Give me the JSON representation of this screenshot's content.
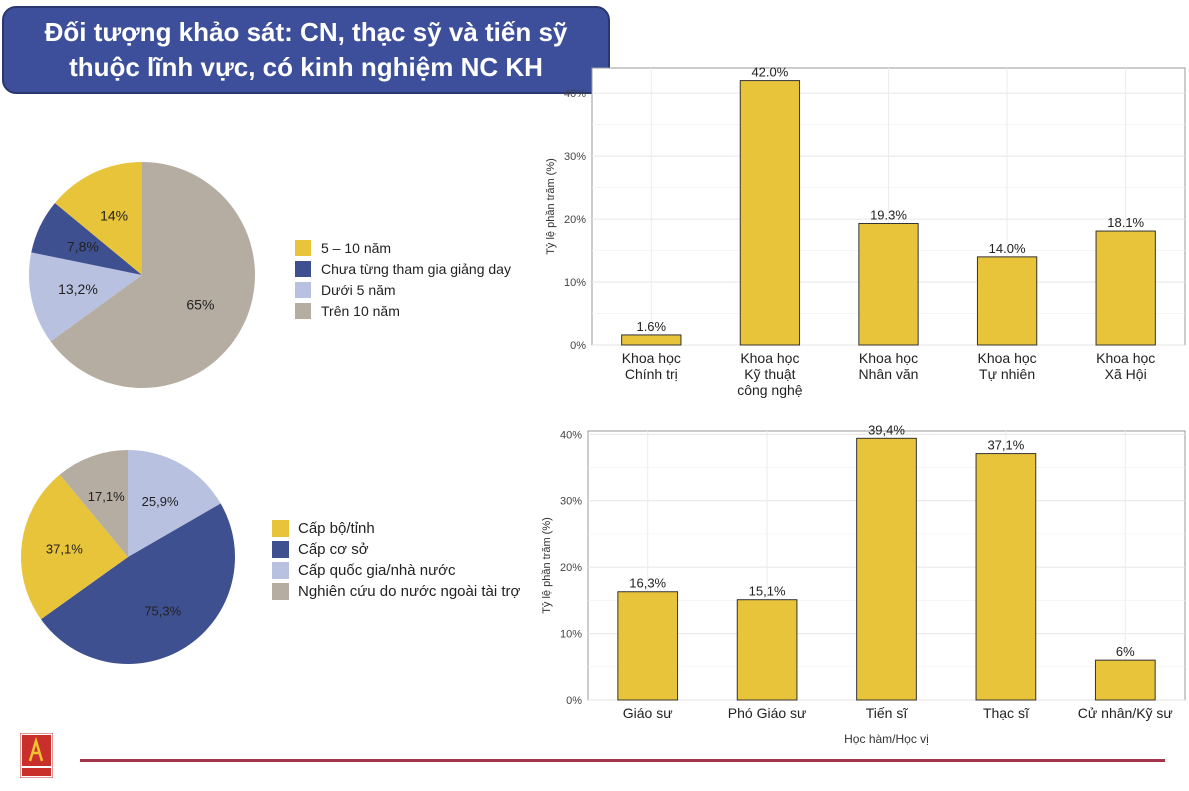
{
  "header": {
    "title_line1": "Đối tượng khảo sát: CN, thạc sỹ và tiến sỹ",
    "title_line2": "thuộc lĩnh vực, có kinh nghiệm NC KH"
  },
  "chart_data": [
    {
      "id": "pie-experience",
      "type": "pie",
      "title": "",
      "categories": [
        "5 – 10 năm",
        "Chưa từng tham gia giảng day",
        "Dưới 5 năm",
        "Trên 10 năm"
      ],
      "values": [
        14,
        7.8,
        13.2,
        65
      ],
      "labels": [
        "14%",
        "7,8%",
        "13,2%",
        "65%"
      ],
      "colors": [
        "#e8c43b",
        "#3f5090",
        "#b8c2e0",
        "#b5ada2"
      ],
      "legend": "right"
    },
    {
      "id": "bar-field",
      "type": "bar",
      "title": "",
      "categories": [
        [
          "Khoa học",
          "Chính trị"
        ],
        [
          "Khoa học",
          "Kỹ thuật",
          "công nghệ"
        ],
        [
          "Khoa học",
          "Nhân văn"
        ],
        [
          "Khoa học",
          "Tự nhiên"
        ],
        [
          "Khoa học",
          "Xã Hội"
        ]
      ],
      "values": [
        1.6,
        42.0,
        19.3,
        14.0,
        18.1
      ],
      "labels": [
        "1.6%",
        "42.0%",
        "19.3%",
        "14.0%",
        "18.1%"
      ],
      "xlabel": "",
      "ylabel": "Tỷ lệ phần trăm (%)",
      "ylim": [
        0,
        44
      ],
      "yticks": [
        0,
        10,
        20,
        30,
        40
      ],
      "ytick_labels": [
        "0%",
        "10%",
        "20%",
        "30%",
        "40%"
      ],
      "bar_color": "#e8c43b",
      "grid": true
    },
    {
      "id": "pie-project-level",
      "type": "pie",
      "title": "",
      "categories": [
        "Cấp bộ/tỉnh",
        "Cấp cơ sở",
        "Cấp quốc gia/nhà nước",
        "Nghiên cứu do nước ngoài tài trợ"
      ],
      "values": [
        37.1,
        75.3,
        25.9,
        17.1
      ],
      "labels": [
        "37,1%",
        "75,3%",
        "25,9%",
        "17,1%"
      ],
      "colors": [
        "#e8c43b",
        "#3f5090",
        "#b8c2e0",
        "#b5ada2"
      ],
      "legend": "right"
    },
    {
      "id": "bar-degree",
      "type": "bar",
      "title": "",
      "categories": [
        [
          "Giáo sư"
        ],
        [
          "Phó Giáo sư"
        ],
        [
          "Tiến sĩ"
        ],
        [
          "Thạc sĩ"
        ],
        [
          "Cử nhân/Kỹ sư"
        ]
      ],
      "values": [
        16.3,
        15.1,
        39.4,
        37.1,
        6
      ],
      "labels": [
        "16,3%",
        "15,1%",
        "39,4%",
        "37,1%",
        "6%"
      ],
      "xlabel": "Học hàm/Học vị",
      "ylabel": "Tỷ lệ phần trăm (%)",
      "ylim": [
        0,
        40.5
      ],
      "yticks": [
        0,
        10,
        20,
        30,
        40
      ],
      "ytick_labels": [
        "0%",
        "10%",
        "20%",
        "30%",
        "40%"
      ],
      "bar_color": "#e8c43b",
      "grid": true
    }
  ]
}
